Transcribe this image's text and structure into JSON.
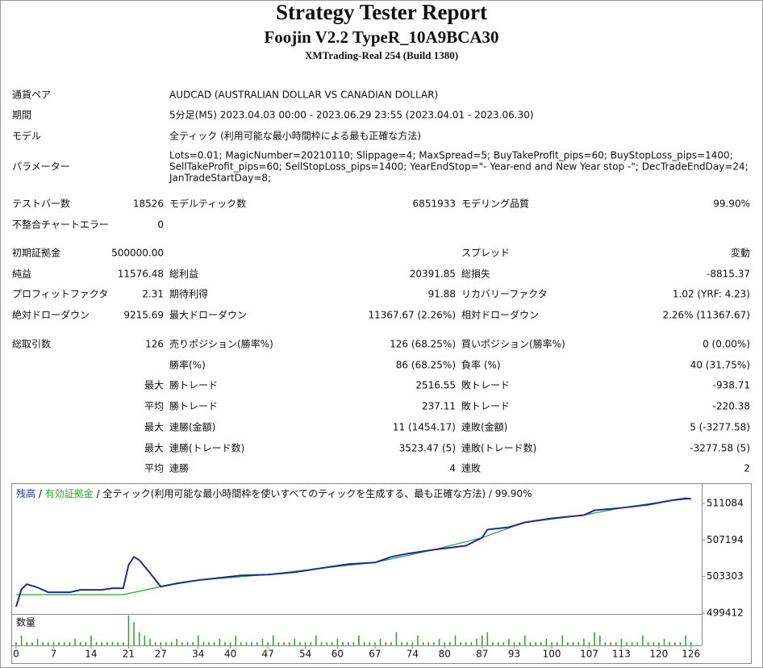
{
  "header": {
    "title": "Strategy Tester Report",
    "subtitle": "Foojin V2.2 TypeR_10A9BCA30",
    "broker": "XMTrading-Real 254 (Build 1380)"
  },
  "table": {
    "rows": [
      [
        "通貨ペア",
        null,
        "AUDCAD (AUSTRALIAN DOLLAR VS CANADIAN DOLLAR)",
        null,
        null,
        null
      ],
      [
        "期間",
        null,
        "5分足(M5) 2023.04.03 00:00 - 2023.06.29 23:55 (2023.04.01 - 2023.06.30)",
        null,
        null,
        null
      ],
      [
        "モデル",
        null,
        "全ティック (利用可能な最小時間枠による最も正確な方法)",
        null,
        null,
        null
      ],
      [
        "パラメーター",
        null,
        [
          "Lots=0.01; MagicNumber=20210110; Slippage=4; MaxSpread=5; BuyTakeProfit_pips=60; BuyStopLoss_pips=1400;",
          "SellTakeProfit_pips=60; SellStopLoss_pips=1400; YearEndStop=\"- Year-end and New Year stop -\"; DecTradeEndDay=24;",
          "JanTradeStartDay=8;"
        ],
        null,
        null,
        null
      ],
      [
        "テストバー数",
        "18526",
        "モデルティック数",
        "6851933",
        "モデリング品質",
        "99.90%"
      ],
      [
        "不整合チャートエラー",
        "0",
        null,
        null,
        null,
        null
      ],
      [
        "初期証拠金",
        "500000.00",
        null,
        null,
        "スプレッド",
        "変動"
      ],
      [
        "純益",
        "11576.48",
        "総利益",
        "20391.85",
        "総損失",
        "-8815.37"
      ],
      [
        "プロフィットファクタ",
        "2.31",
        "期待利得",
        "91.88",
        "リカバリーファクタ",
        "1.02 (YRF: 4.23)"
      ],
      [
        "絶対ドローダウン",
        "9215.69",
        "最大ドローダウン",
        "11367.67 (2.26%)",
        "相対ドローダウン",
        "2.26% (11367.67)"
      ],
      [
        "総取引数",
        "126",
        "売りポジション(勝率%)",
        "126 (68.25%)",
        "買いポジション(勝率%)",
        "0 (0.00%)"
      ],
      [
        null,
        null,
        "勝率(%)",
        "86 (68.25%)",
        "負率 (%)",
        "40 (31.75%)"
      ],
      [
        null,
        "最大",
        "勝トレード",
        "2516.55",
        "敗トレード",
        "-938.71"
      ],
      [
        null,
        "平均",
        "勝トレード",
        "237.11",
        "敗トレード",
        "-220.38"
      ],
      [
        null,
        "最大",
        "連勝(金額)",
        "11 (1454.17)",
        "連敗(金額)",
        "5 (-3277.58)"
      ],
      [
        null,
        "最大",
        "連勝(トレード数)",
        "3523.47 (5)",
        "連敗(トレード数)",
        "-3277.58 (5)"
      ],
      [
        null,
        "平均",
        "連勝",
        "4",
        "連敗",
        "2"
      ]
    ]
  },
  "chart_data": {
    "type": "line",
    "legend_separator": "/",
    "model": "全ティック(利用可能な最小時間枠を使いすべてのティックを生成する、最も正確な方法)",
    "quality": "99.90%",
    "volume_label": "数量",
    "xlim": [
      -0.75,
      128
    ],
    "xticks": [
      0,
      7,
      14,
      21,
      27,
      34,
      40,
      47,
      54,
      60,
      67,
      74,
      80,
      87,
      93,
      100,
      107,
      113,
      120,
      126
    ],
    "ylim": [
      499412,
      513150
    ],
    "yticks": [
      499412,
      503303,
      507194,
      511084
    ],
    "series": [
      {
        "name": "有効証拠金",
        "color": "#2ca02c",
        "x": [
          0,
          20,
          27,
          34,
          47,
          57,
          67,
          78,
          87,
          95,
          106,
          113,
          122,
          126
        ],
        "values": [
          501379,
          501379,
          502234,
          502917,
          503516,
          504200,
          504798,
          506166,
          507449,
          509073,
          509843,
          510612,
          511382,
          511576
        ]
      },
      {
        "name": "残高",
        "color": "#1f2aa0",
        "x": [
          0,
          1,
          2,
          4,
          6,
          10,
          12,
          16,
          18,
          20,
          21,
          22,
          23,
          25,
          27,
          30,
          34,
          38,
          42,
          47,
          52,
          57,
          62,
          67,
          70,
          73,
          78,
          84,
          87,
          88,
          92,
          95,
          100,
          106,
          108,
          113,
          118,
          122,
          125,
          126
        ],
        "values": [
          500096,
          501977,
          502490,
          502148,
          501635,
          501635,
          501891,
          501891,
          502062,
          502062,
          504542,
          505397,
          505055,
          503687,
          502234,
          502575,
          502917,
          503174,
          503430,
          503516,
          503772,
          504200,
          504627,
          504798,
          505397,
          505739,
          506166,
          506594,
          507449,
          508304,
          508560,
          509073,
          509501,
          509843,
          510356,
          510612,
          510954,
          511382,
          511639,
          511576.48
        ]
      }
    ],
    "volume": {
      "color": "#2ca02c",
      "ylim": [
        0,
        9
      ],
      "values": [
        1,
        3,
        1,
        1,
        2,
        1,
        1,
        1,
        1,
        1,
        1,
        2,
        1,
        1,
        3,
        1,
        1,
        1,
        1,
        1,
        1,
        9,
        7,
        4,
        3,
        2,
        1,
        1,
        1,
        1,
        2,
        1,
        1,
        1,
        3,
        1,
        1,
        1,
        2,
        1,
        1,
        3,
        1,
        1,
        1,
        1,
        2,
        1,
        3,
        1,
        1,
        1,
        2,
        1,
        1,
        1,
        3,
        1,
        1,
        1,
        2,
        1,
        1,
        1,
        3,
        1,
        1,
        1,
        2,
        1,
        1,
        4,
        1,
        1,
        1,
        3,
        1,
        1,
        1,
        2,
        1,
        1,
        3,
        1,
        1,
        1,
        2,
        3,
        4,
        1,
        1,
        1,
        2,
        1,
        1,
        3,
        1,
        1,
        1,
        2,
        1,
        1,
        3,
        1,
        1,
        1,
        2,
        1,
        4,
        3,
        1,
        1,
        1,
        2,
        1,
        1,
        1,
        3,
        1,
        1,
        1,
        2,
        1,
        1,
        1,
        3,
        1
      ]
    }
  }
}
